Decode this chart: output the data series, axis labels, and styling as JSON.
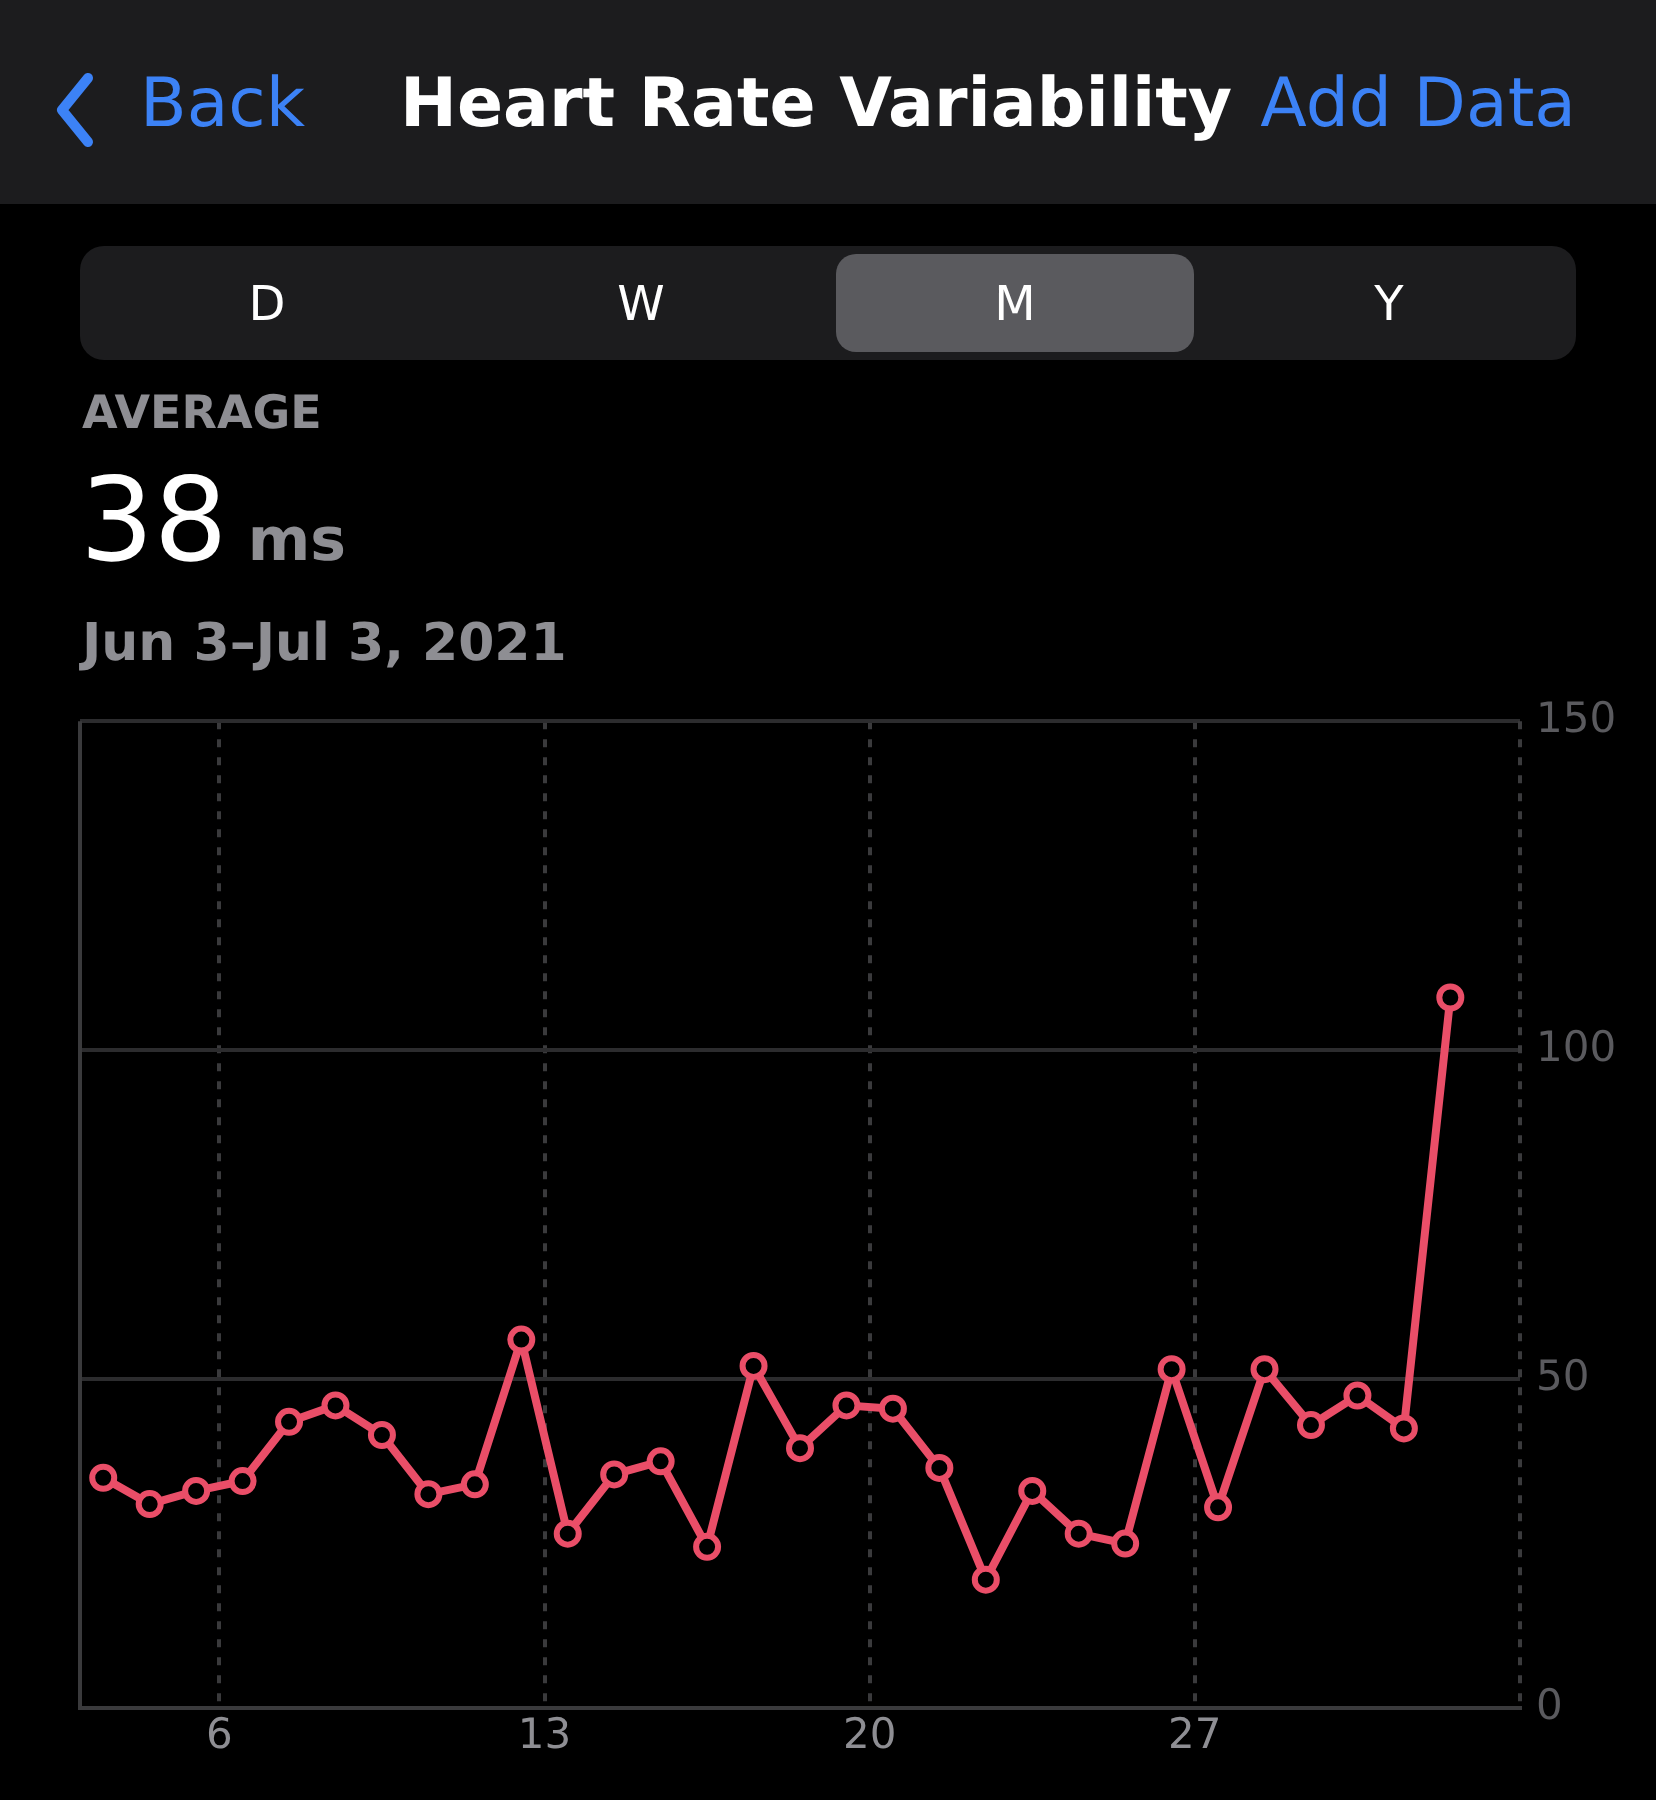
{
  "chart_data": {
    "type": "line",
    "title": "Heart Rate Variability",
    "subtitle": "Jun 3–Jul 3, 2021",
    "annotations": [
      "Back",
      "Add Data",
      "AVERAGE",
      "38",
      "ms",
      "D",
      "W",
      "M",
      "Y"
    ],
    "x": [
      "2021-06-03T12:00",
      "2021-06-04T12:00",
      "2021-06-05T12:00",
      "2021-06-06T12:00",
      "2021-06-07T12:00",
      "2021-06-08T12:00",
      "2021-06-09T12:00",
      "2021-06-10T12:00",
      "2021-06-11T12:00",
      "2021-06-12T12:00",
      "2021-06-13T12:00",
      "2021-06-14T12:00",
      "2021-06-15T12:00",
      "2021-06-16T12:00",
      "2021-06-17T12:00",
      "2021-06-18T12:00",
      "2021-06-19T12:00",
      "2021-06-20T12:00",
      "2021-06-21T12:00",
      "2021-06-22T12:00",
      "2021-06-23T12:00",
      "2021-06-24T12:00",
      "2021-06-25T12:00",
      "2021-06-26T12:00",
      "2021-06-27T12:00",
      "2021-06-28T12:00",
      "2021-06-29T12:00",
      "2021-06-30T12:00",
      "2021-07-01T12:00",
      "2021-07-02T12:00"
    ],
    "series": [
      {
        "color": "#ea4e68",
        "values": [
          35,
          31,
          33,
          34.5,
          43.5,
          46,
          41.5,
          32.5,
          34,
          56,
          26.5,
          35.5,
          37.5,
          24.5,
          52,
          39.5,
          46,
          45.5,
          36.5,
          19.5,
          33,
          26.5,
          25,
          51.5,
          30.5,
          51.5,
          43,
          47.5,
          42.5,
          108
        ]
      }
    ],
    "xlim": [
      "2021-06-03",
      "2021-07-04"
    ],
    "xticks": [
      {
        "value": "2021-06-06",
        "label": "6"
      },
      {
        "value": "2021-06-13",
        "label": "13"
      },
      {
        "value": "2021-06-20",
        "label": "20"
      },
      {
        "value": "2021-06-27",
        "label": "27"
      }
    ],
    "ylim": [
      0,
      150
    ],
    "yticks": [
      0,
      50,
      100,
      150
    ],
    "grid": true,
    "marker": "circle",
    "line_style": "solid",
    "legend": false
  }
}
